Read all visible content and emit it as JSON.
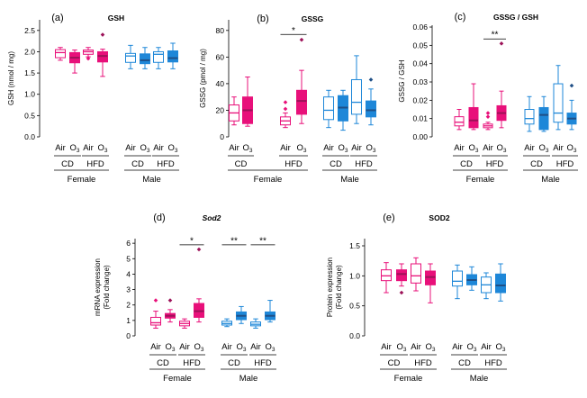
{
  "colors": {
    "female": "#e8107a",
    "male": "#1e87d8",
    "dark_female": "#9c1258",
    "dark_male": "#1f4f86"
  },
  "group_labels": {
    "air": "Air",
    "o3": "O",
    "o3_sub": "3",
    "cd": "CD",
    "hfd": "HFD",
    "female": "Female",
    "male": "Male"
  },
  "chart_data": [
    {
      "type": "box",
      "id": "a",
      "panel_label": "(a)",
      "title": "GSH",
      "title_italic": false,
      "ylabel": "GSH (nmol / mg)",
      "ylabel_lines": [
        "GSH (nmol / mg)"
      ],
      "ylim": [
        0,
        2.75
      ],
      "yticks": [
        "0.0",
        "0.5",
        "1.0",
        "1.5",
        "2.0",
        "2.5"
      ],
      "boxes": [
        {
          "q1": 1.86,
          "med": 1.98,
          "q3": 2.05,
          "lo": 1.8,
          "hi": 2.1,
          "out": []
        },
        {
          "q1": 1.74,
          "med": 1.86,
          "q3": 1.98,
          "lo": 1.5,
          "hi": 2.04,
          "out": []
        },
        {
          "q1": 1.94,
          "med": 2.0,
          "q3": 2.04,
          "lo": 1.88,
          "hi": 2.1,
          "out": [
            1.84
          ]
        },
        {
          "q1": 1.76,
          "med": 1.9,
          "q3": 2.0,
          "lo": 1.42,
          "hi": 2.06,
          "out": [
            2.4
          ]
        },
        {
          "q1": 1.75,
          "med": 1.9,
          "q3": 1.96,
          "lo": 1.6,
          "hi": 2.15,
          "out": []
        },
        {
          "q1": 1.72,
          "med": 1.8,
          "q3": 1.95,
          "lo": 1.6,
          "hi": 2.1,
          "out": []
        },
        {
          "q1": 1.75,
          "med": 1.94,
          "q3": 2.0,
          "lo": 1.6,
          "hi": 2.1,
          "out": []
        },
        {
          "q1": 1.76,
          "med": 1.85,
          "q3": 2.02,
          "lo": 1.6,
          "hi": 2.2,
          "out": []
        }
      ],
      "sig": []
    },
    {
      "type": "box",
      "id": "b",
      "panel_label": "(b)",
      "title": "GSSG",
      "title_italic": false,
      "ylabel": "GSSG (pmol / mg)",
      "ylabel_lines": [
        "GSSG (pmol / mg)"
      ],
      "ylim": [
        0,
        88
      ],
      "yticks": [
        "0",
        "20",
        "40",
        "60",
        "80"
      ],
      "boxes": [
        {
          "q1": 12,
          "med": 18,
          "q3": 24,
          "lo": 9,
          "hi": 30,
          "out": []
        },
        {
          "q1": 10,
          "med": 20,
          "q3": 30,
          "lo": 8,
          "hi": 45,
          "out": []
        },
        {
          "q1": 9,
          "med": 12,
          "q3": 15,
          "lo": 7,
          "hi": 18,
          "out": [
            21,
            26
          ]
        },
        {
          "q1": 17,
          "med": 27,
          "q3": 35,
          "lo": 10,
          "hi": 50,
          "out": [
            73
          ]
        },
        {
          "q1": 13,
          "med": 20,
          "q3": 30,
          "lo": 7,
          "hi": 35,
          "out": []
        },
        {
          "q1": 12,
          "med": 22,
          "q3": 31,
          "lo": 5,
          "hi": 35,
          "out": []
        },
        {
          "q1": 17,
          "med": 26,
          "q3": 43,
          "lo": 10,
          "hi": 61,
          "out": []
        },
        {
          "q1": 15,
          "med": 20,
          "q3": 27,
          "lo": 9,
          "hi": 36,
          "out": [
            43
          ]
        }
      ],
      "sig": [
        {
          "text": "*",
          "from": 2,
          "to": 3,
          "y": 77
        }
      ]
    },
    {
      "type": "box",
      "id": "c",
      "panel_label": "(c)",
      "title": "GSSG / GSH",
      "title_italic": false,
      "ylabel": "GSSG / GSH",
      "ylabel_lines": [
        "GSSG / GSH"
      ],
      "ylim": [
        0,
        0.061
      ],
      "yticks": [
        "0.00",
        "0.01",
        "0.02",
        "0.03",
        "0.04",
        "0.05",
        "0.06"
      ],
      "boxes": [
        {
          "q1": 0.006,
          "med": 0.008,
          "q3": 0.011,
          "lo": 0.004,
          "hi": 0.015,
          "out": []
        },
        {
          "q1": 0.005,
          "med": 0.009,
          "q3": 0.016,
          "lo": 0.004,
          "hi": 0.029,
          "out": []
        },
        {
          "q1": 0.005,
          "med": 0.006,
          "q3": 0.007,
          "lo": 0.004,
          "hi": 0.008,
          "out": [
            0.011,
            0.013
          ]
        },
        {
          "q1": 0.009,
          "med": 0.013,
          "q3": 0.017,
          "lo": 0.005,
          "hi": 0.025,
          "out": [
            0.051
          ]
        },
        {
          "q1": 0.007,
          "med": 0.01,
          "q3": 0.015,
          "lo": 0.003,
          "hi": 0.022,
          "out": []
        },
        {
          "q1": 0.004,
          "med": 0.012,
          "q3": 0.016,
          "lo": 0.003,
          "hi": 0.022,
          "out": []
        },
        {
          "q1": 0.008,
          "med": 0.013,
          "q3": 0.029,
          "lo": 0.004,
          "hi": 0.039,
          "out": []
        },
        {
          "q1": 0.007,
          "med": 0.01,
          "q3": 0.013,
          "lo": 0.004,
          "hi": 0.02,
          "out": [
            0.028
          ]
        }
      ],
      "sig": [
        {
          "text": "**",
          "from": 2,
          "to": 3,
          "y": 0.0535
        }
      ]
    },
    {
      "type": "box",
      "id": "d",
      "panel_label": "(d)",
      "title": "Sod2",
      "title_italic": true,
      "ylabel": "mRNA expression (Fold change)",
      "ylabel_lines": [
        "mRNA expression",
        "(Fold change)"
      ],
      "ylim": [
        0,
        6.3
      ],
      "yticks": [
        "0",
        "1",
        "2",
        "3",
        "4",
        "5",
        "6"
      ],
      "boxes": [
        {
          "q1": 0.7,
          "med": 0.85,
          "q3": 1.2,
          "lo": 0.5,
          "hi": 1.6,
          "out": [
            2.3
          ]
        },
        {
          "q1": 1.15,
          "med": 1.3,
          "q3": 1.45,
          "lo": 0.9,
          "hi": 1.7,
          "out": [
            2.3
          ]
        },
        {
          "q1": 0.65,
          "med": 0.8,
          "q3": 0.95,
          "lo": 0.5,
          "hi": 1.1,
          "out": []
        },
        {
          "q1": 1.2,
          "med": 1.6,
          "q3": 2.1,
          "lo": 0.9,
          "hi": 2.4,
          "out": [
            5.6
          ]
        },
        {
          "q1": 0.7,
          "med": 0.8,
          "q3": 0.95,
          "lo": 0.6,
          "hi": 1.1,
          "out": []
        },
        {
          "q1": 1.05,
          "med": 1.3,
          "q3": 1.55,
          "lo": 0.8,
          "hi": 1.9,
          "out": []
        },
        {
          "q1": 0.65,
          "med": 0.75,
          "q3": 0.9,
          "lo": 0.5,
          "hi": 1.1,
          "out": []
        },
        {
          "q1": 1.05,
          "med": 1.3,
          "q3": 1.55,
          "lo": 0.9,
          "hi": 2.3,
          "out": []
        }
      ],
      "sig": [
        {
          "text": "*",
          "from": 2,
          "to": 3,
          "y": 5.9
        },
        {
          "text": "**",
          "from": 4,
          "to": 5,
          "y": 5.9
        },
        {
          "text": "**",
          "from": 6,
          "to": 7,
          "y": 5.9
        }
      ]
    },
    {
      "type": "box",
      "id": "e",
      "panel_label": "(e)",
      "title": "SOD2",
      "title_italic": false,
      "ylabel": "Protein expression (Fold change)",
      "ylabel_lines": [
        "Protein expression",
        "(Fold change)"
      ],
      "ylim": [
        0,
        1.62
      ],
      "yticks": [
        "0.0",
        "0.5",
        "1.0",
        "1.5"
      ],
      "boxes": [
        {
          "q1": 0.92,
          "med": 1.0,
          "q3": 1.1,
          "lo": 0.72,
          "hi": 1.22,
          "out": []
        },
        {
          "q1": 0.92,
          "med": 1.03,
          "q3": 1.1,
          "lo": 0.83,
          "hi": 1.2,
          "out": [
            0.72
          ]
        },
        {
          "q1": 0.88,
          "med": 1.0,
          "q3": 1.2,
          "lo": 0.75,
          "hi": 1.3,
          "out": []
        },
        {
          "q1": 0.85,
          "med": 0.98,
          "q3": 1.08,
          "lo": 0.55,
          "hi": 1.2,
          "out": []
        },
        {
          "q1": 0.83,
          "med": 0.91,
          "q3": 1.08,
          "lo": 0.62,
          "hi": 1.18,
          "out": []
        },
        {
          "q1": 0.85,
          "med": 0.93,
          "q3": 1.02,
          "lo": 0.76,
          "hi": 1.15,
          "out": []
        },
        {
          "q1": 0.72,
          "med": 0.85,
          "q3": 0.98,
          "lo": 0.62,
          "hi": 1.05,
          "out": []
        },
        {
          "q1": 0.72,
          "med": 0.84,
          "q3": 1.03,
          "lo": 0.58,
          "hi": 1.2,
          "out": []
        }
      ],
      "sig": []
    }
  ]
}
